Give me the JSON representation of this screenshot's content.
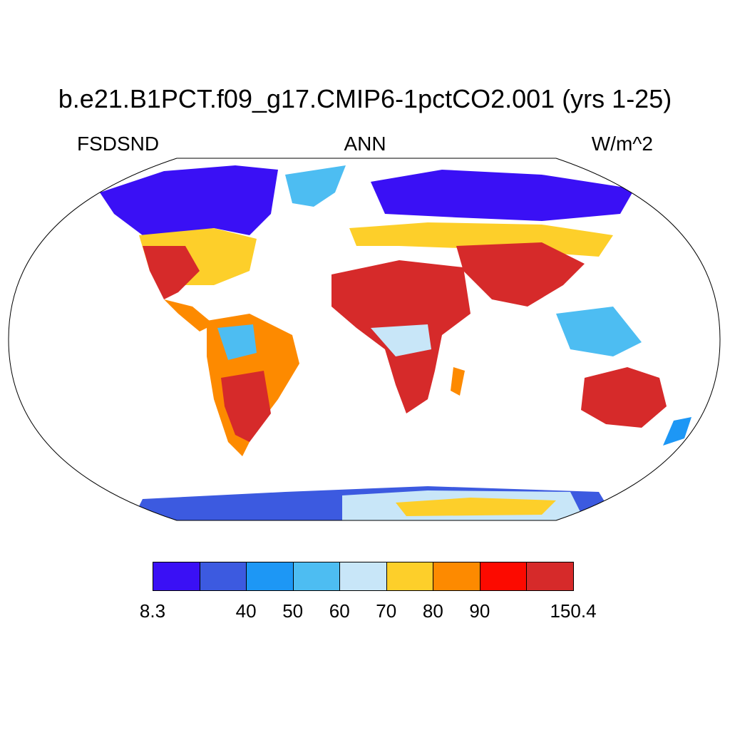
{
  "header": {
    "title": "b.e21.B1PCT.f09_g17.CMIP6-1pctCO2.001 (yrs 1-25)",
    "variable": "FSDSND",
    "season": "ANN",
    "units": "W/m^2"
  },
  "colorbar": {
    "colors": [
      "#3a10f5",
      "#3c5ae0",
      "#1d97f5",
      "#4dbdf2",
      "#c8e6f8",
      "#fdcf2a",
      "#fd8a00",
      "#fc0a00",
      "#d62a2a"
    ],
    "labels": [
      "8.3",
      "40",
      "50",
      "60",
      "70",
      "80",
      "90",
      "150.4"
    ]
  }
}
